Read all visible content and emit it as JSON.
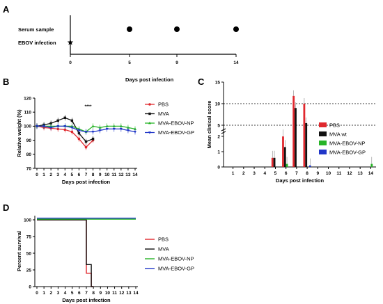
{
  "panels": {
    "A": {
      "letter": "A",
      "rows": [
        "Serum sample",
        "EBOV infection"
      ],
      "xticks": [
        0,
        5,
        9,
        14
      ],
      "serum_days": [
        5,
        9,
        14
      ],
      "infection_day": 0,
      "xlabel": "Days post infection"
    }
  },
  "chart_data": [
    {
      "panel": "B",
      "type": "line",
      "ylabel": "Relative weight (%)",
      "xlabel": "Days post infection",
      "ylim": [
        70,
        120
      ],
      "yticks": [
        70,
        80,
        90,
        100,
        110,
        120
      ],
      "x": [
        0,
        1,
        2,
        3,
        4,
        5,
        6,
        7,
        8,
        9,
        10,
        11,
        12,
        13,
        14
      ],
      "annotation": "****",
      "series": [
        {
          "name": "PBS",
          "color": "#e0282e",
          "x": [
            0,
            1,
            2,
            3,
            4,
            5,
            6,
            7,
            8
          ],
          "values": [
            100,
            99,
            98.5,
            98,
            97.5,
            96,
            91,
            85,
            90
          ]
        },
        {
          "name": "MVA",
          "color": "#111111",
          "x": [
            0,
            1,
            2,
            3,
            4,
            5,
            6,
            7,
            8
          ],
          "values": [
            100,
            101,
            102,
            104,
            106,
            104,
            95,
            89,
            91
          ]
        },
        {
          "name": "MVA-EBOV-NP",
          "color": "#27b427",
          "x": [
            0,
            1,
            2,
            3,
            4,
            5,
            6,
            7,
            8,
            9,
            10,
            11,
            12,
            13,
            14
          ],
          "values": [
            100,
            100,
            100,
            100,
            100,
            100,
            98,
            96,
            100,
            99,
            100,
            100,
            100,
            99,
            98
          ]
        },
        {
          "name": "MVA-EBOV-GP",
          "color": "#2036c8",
          "x": [
            0,
            1,
            2,
            3,
            4,
            5,
            6,
            7,
            8,
            9,
            10,
            11,
            12,
            13,
            14
          ],
          "values": [
            100,
            100,
            99,
            100,
            100,
            99,
            97,
            96,
            96,
            97,
            98,
            98,
            98,
            97,
            96
          ]
        }
      ]
    },
    {
      "panel": "C",
      "type": "bar",
      "ylabel": "Mean clinical score",
      "xlabel": "Days post infection",
      "categories": [
        1,
        2,
        3,
        4,
        5,
        6,
        7,
        8,
        9,
        10,
        11,
        12,
        13,
        14
      ],
      "yticks": [
        0,
        1,
        2,
        5,
        10,
        15
      ],
      "dashed_lines": [
        5,
        10
      ],
      "series": [
        {
          "name": "PBS",
          "color": "#e0282e",
          "values": [
            0,
            0,
            0,
            0,
            0.6,
            2.4,
            11.8,
            10,
            0,
            0,
            0,
            0,
            0,
            0
          ]
        },
        {
          "name": "MVA wt",
          "color": "#111111",
          "values": [
            0,
            0,
            0,
            0,
            0.6,
            1.3,
            9,
            5.5,
            0,
            0,
            0,
            0,
            0,
            0
          ]
        },
        {
          "name": "MVA-EBOV-NP",
          "color": "#27b427",
          "values": [
            0,
            0,
            0,
            0,
            0,
            0.2,
            0,
            0,
            0,
            0,
            0,
            0,
            0,
            0.2
          ]
        },
        {
          "name": "MVA-EBOV-GP",
          "color": "#2036c8",
          "values": [
            0,
            0,
            0,
            0,
            0,
            0,
            0,
            0.1,
            0,
            0,
            0,
            0,
            0,
            0
          ]
        }
      ]
    },
    {
      "panel": "D",
      "type": "line",
      "ylabel": "Percent survival",
      "xlabel": "Days post infection",
      "ylim": [
        0,
        105
      ],
      "yticks": [
        0,
        25,
        50,
        75,
        100
      ],
      "xticks": [
        0,
        1,
        2,
        3,
        4,
        5,
        6,
        7,
        8,
        9,
        10,
        11,
        12,
        13,
        14
      ],
      "series": [
        {
          "name": "PBS",
          "color": "#e0282e",
          "steps": [
            [
              0,
              100
            ],
            [
              7,
              100
            ],
            [
              7,
              20
            ],
            [
              7.7,
              20
            ],
            [
              7.7,
              0
            ],
            [
              8,
              0
            ]
          ]
        },
        {
          "name": "MVA",
          "color": "#111111",
          "steps": [
            [
              0,
              100
            ],
            [
              7,
              100
            ],
            [
              7,
              33
            ],
            [
              7.7,
              33
            ],
            [
              7.7,
              0
            ],
            [
              8,
              0
            ]
          ]
        },
        {
          "name": "MVA-EBOV-NP",
          "color": "#27b427",
          "steps": [
            [
              0,
              101
            ],
            [
              14,
              101
            ]
          ]
        },
        {
          "name": "MVA-EBOV-GP",
          "color": "#2036c8",
          "steps": [
            [
              0,
              102.5
            ],
            [
              14,
              102.5
            ]
          ]
        }
      ]
    }
  ],
  "letters": {
    "B": "B",
    "C": "C",
    "D": "D"
  }
}
